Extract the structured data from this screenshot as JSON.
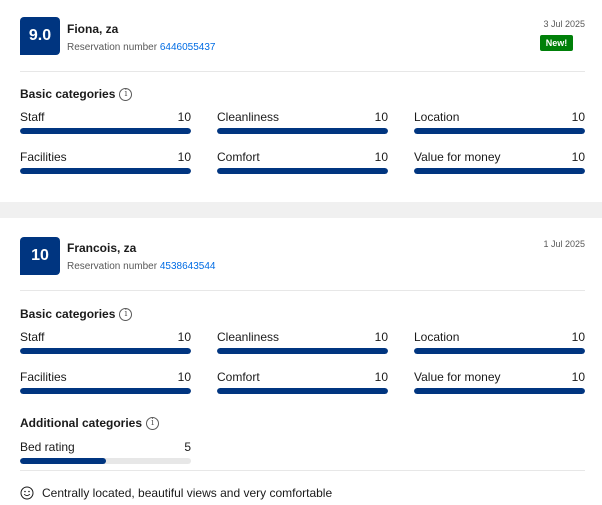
{
  "reviews": [
    {
      "score": "9.0",
      "name": "Fiona, za",
      "reservation_label": "Reservation number",
      "reservation_number": "6446055437",
      "date": "3 Jul 2025",
      "badge": "New!",
      "basic_heading": "Basic categories",
      "info_glyph": "i",
      "basic": [
        {
          "label": "Staff",
          "value": "10",
          "fraction": 1.0
        },
        {
          "label": "Cleanliness",
          "value": "10",
          "fraction": 1.0
        },
        {
          "label": "Location",
          "value": "10",
          "fraction": 1.0
        },
        {
          "label": "Facilities",
          "value": "10",
          "fraction": 1.0
        },
        {
          "label": "Comfort",
          "value": "10",
          "fraction": 1.0
        },
        {
          "label": "Value for money",
          "value": "10",
          "fraction": 1.0
        }
      ]
    },
    {
      "score": "10",
      "name": "Francois, za",
      "reservation_label": "Reservation number",
      "reservation_number": "4538643544",
      "date": "1 Jul 2025",
      "basic_heading": "Basic categories",
      "info_glyph": "i",
      "basic": [
        {
          "label": "Staff",
          "value": "10",
          "fraction": 1.0
        },
        {
          "label": "Cleanliness",
          "value": "10",
          "fraction": 1.0
        },
        {
          "label": "Location",
          "value": "10",
          "fraction": 1.0
        },
        {
          "label": "Facilities",
          "value": "10",
          "fraction": 1.0
        },
        {
          "label": "Comfort",
          "value": "10",
          "fraction": 1.0
        },
        {
          "label": "Value for money",
          "value": "10",
          "fraction": 1.0
        }
      ],
      "additional_heading": "Additional categories",
      "additional": [
        {
          "label": "Bed rating",
          "value": "5",
          "fraction": 0.5
        }
      ],
      "comment": "Centrally located, beautiful views and very comfortable",
      "comment_icon": "smile-icon"
    }
  ],
  "colors": {
    "brand_blue": "#003580",
    "link_blue": "#006ce4",
    "badge_green": "#008009",
    "track_gray": "#e7e7e7"
  }
}
